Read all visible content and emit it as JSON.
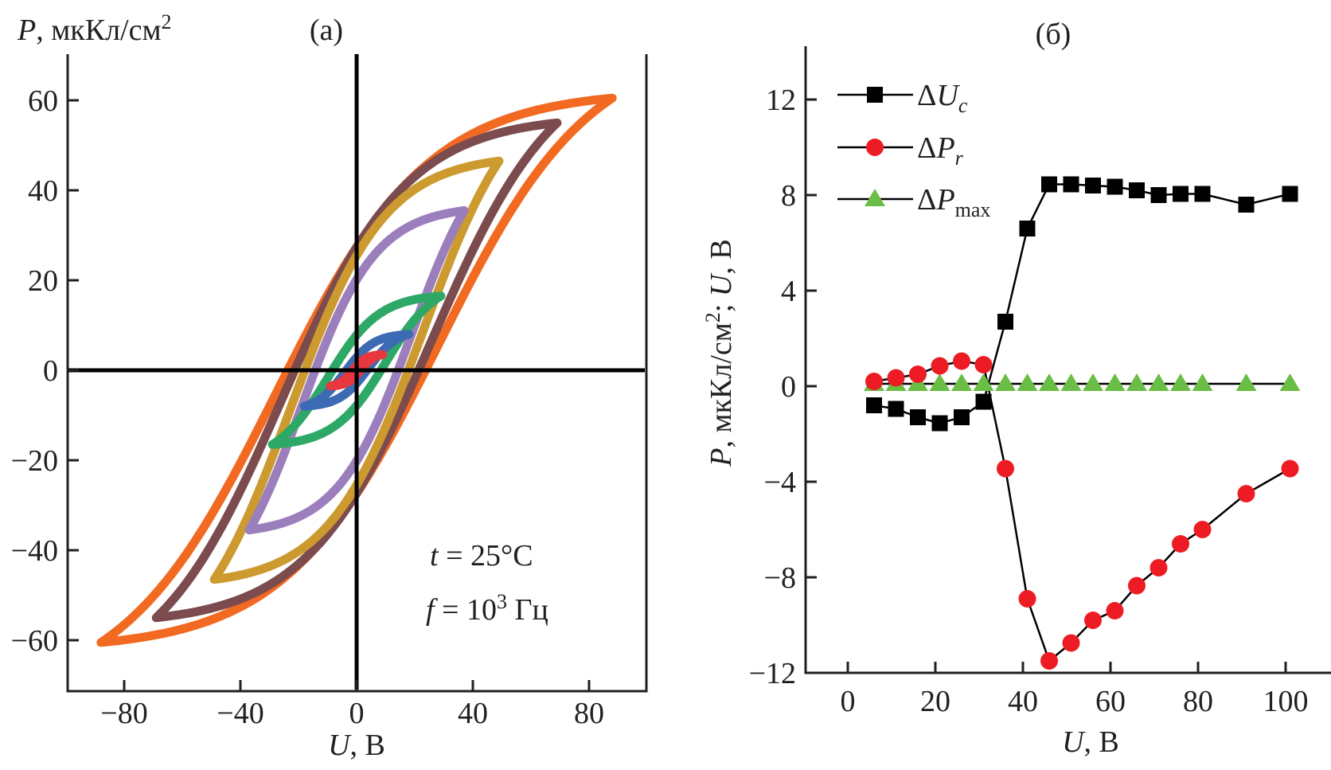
{
  "chart_data": [
    {
      "id": "a",
      "type": "line",
      "panel_label": "(a)",
      "title": "",
      "xlabel_var": "U",
      "xlabel_unit": ", В",
      "ylabel_var": "P",
      "ylabel_unit": ", мкКл/см",
      "ylabel_sup": "2",
      "xlim": [
        -100,
        100
      ],
      "ylim": [
        -71,
        70
      ],
      "xticks": [
        -80,
        -40,
        0,
        40,
        80
      ],
      "yticks": [
        -60,
        -40,
        -20,
        0,
        20,
        40,
        60
      ],
      "xtick_labels": [
        "−80",
        "−40",
        "0",
        "40",
        "80"
      ],
      "ytick_labels": [
        "−60",
        "−40",
        "−20",
        "0",
        "20",
        "40",
        "60"
      ],
      "grid": false,
      "annotations": [
        {
          "var": "t",
          "text": " = 25°C"
        },
        {
          "var": "f",
          "text": " = 10",
          "sup": "3",
          "tail": " Гц"
        }
      ],
      "series": [
        {
          "name": "loop-88V",
          "color": "#f26a21",
          "Umax": 88,
          "Pmax": 60.5,
          "Pr": 31,
          "Uc": 28
        },
        {
          "name": "loop-70V",
          "color": "#7b4b4d",
          "Umax": 69,
          "Pmax": 55,
          "Pr": 28,
          "Uc": 26
        },
        {
          "name": "loop-50V",
          "color": "#cc9a2e",
          "Umax": 49,
          "Pmax": 46.5,
          "Pr": 25,
          "Uc": 23
        },
        {
          "name": "loop-37V",
          "color": "#9b7fbc",
          "Umax": 37,
          "Pmax": 35.5,
          "Pr": 16,
          "Uc": 19
        },
        {
          "name": "loop-29V",
          "color": "#2ea866",
          "Umax": 29,
          "Pmax": 16.5,
          "Pr": 5,
          "Uc": 10
        },
        {
          "name": "loop-18V",
          "color": "#3d6bb3",
          "Umax": 18,
          "Pmax": 8,
          "Pr": 1.5,
          "Uc": 4
        },
        {
          "name": "loop-9V",
          "color": "#e8373f",
          "Umax": 9,
          "Pmax": 3.5,
          "Pr": 0.5,
          "Uc": 1.5
        }
      ]
    },
    {
      "id": "b",
      "type": "scatter",
      "panel_label": "(б)",
      "title": "",
      "xlabel_var": "U",
      "xlabel_unit": ", В",
      "ylabel_text": "P, мкКл/см²; U, В",
      "ylabel_parts": [
        "P",
        ", мкКл/см",
        "2",
        "; ",
        "U",
        ", В"
      ],
      "xlim": [
        -9.5,
        110
      ],
      "ylim": [
        -12,
        14.3
      ],
      "xticks": [
        0,
        20,
        40,
        60,
        80,
        100
      ],
      "yticks": [
        -12,
        -8,
        -4,
        0,
        4,
        8,
        12
      ],
      "xtick_labels": [
        "0",
        "20",
        "40",
        "60",
        "80",
        "100"
      ],
      "ytick_labels": [
        "−12",
        "−8",
        "−4",
        "0",
        "4",
        "8",
        "12"
      ],
      "grid": false,
      "legend_position": "top-left",
      "x": [
        6,
        11,
        16,
        21,
        26,
        31,
        36,
        41,
        46,
        51,
        56,
        61,
        66,
        71,
        76,
        81,
        91,
        101
      ],
      "series": [
        {
          "name": "ΔUc",
          "legend_main": "ΔU",
          "legend_sub": "c",
          "sub_style": "italic",
          "marker": "square",
          "color": "#000000",
          "values": [
            -0.8,
            -0.95,
            -1.3,
            -1.55,
            -1.3,
            -0.65,
            2.7,
            6.6,
            8.45,
            8.45,
            8.4,
            8.35,
            8.2,
            8.0,
            8.05,
            8.05,
            7.6,
            8.05
          ]
        },
        {
          "name": "ΔPr",
          "legend_main": "ΔP",
          "legend_sub": "r",
          "sub_style": "italic",
          "marker": "circle",
          "color": "#ed1c24",
          "values": [
            0.2,
            0.35,
            0.5,
            0.85,
            1.05,
            0.9,
            -3.45,
            -8.9,
            -11.5,
            -10.75,
            -9.8,
            -9.4,
            -8.35,
            -7.6,
            -6.6,
            -6.0,
            -4.5,
            -3.45
          ]
        },
        {
          "name": "ΔPmax",
          "legend_main": "ΔP",
          "legend_sub": "max",
          "sub_style": "normal",
          "marker": "triangle",
          "color": "#6abd45",
          "values": [
            0.1,
            0.1,
            0.1,
            0.1,
            0.1,
            0.1,
            0.1,
            0.1,
            0.1,
            0.1,
            0.1,
            0.1,
            0.1,
            0.1,
            0.1,
            0.1,
            0.1,
            0.1
          ]
        }
      ]
    }
  ]
}
